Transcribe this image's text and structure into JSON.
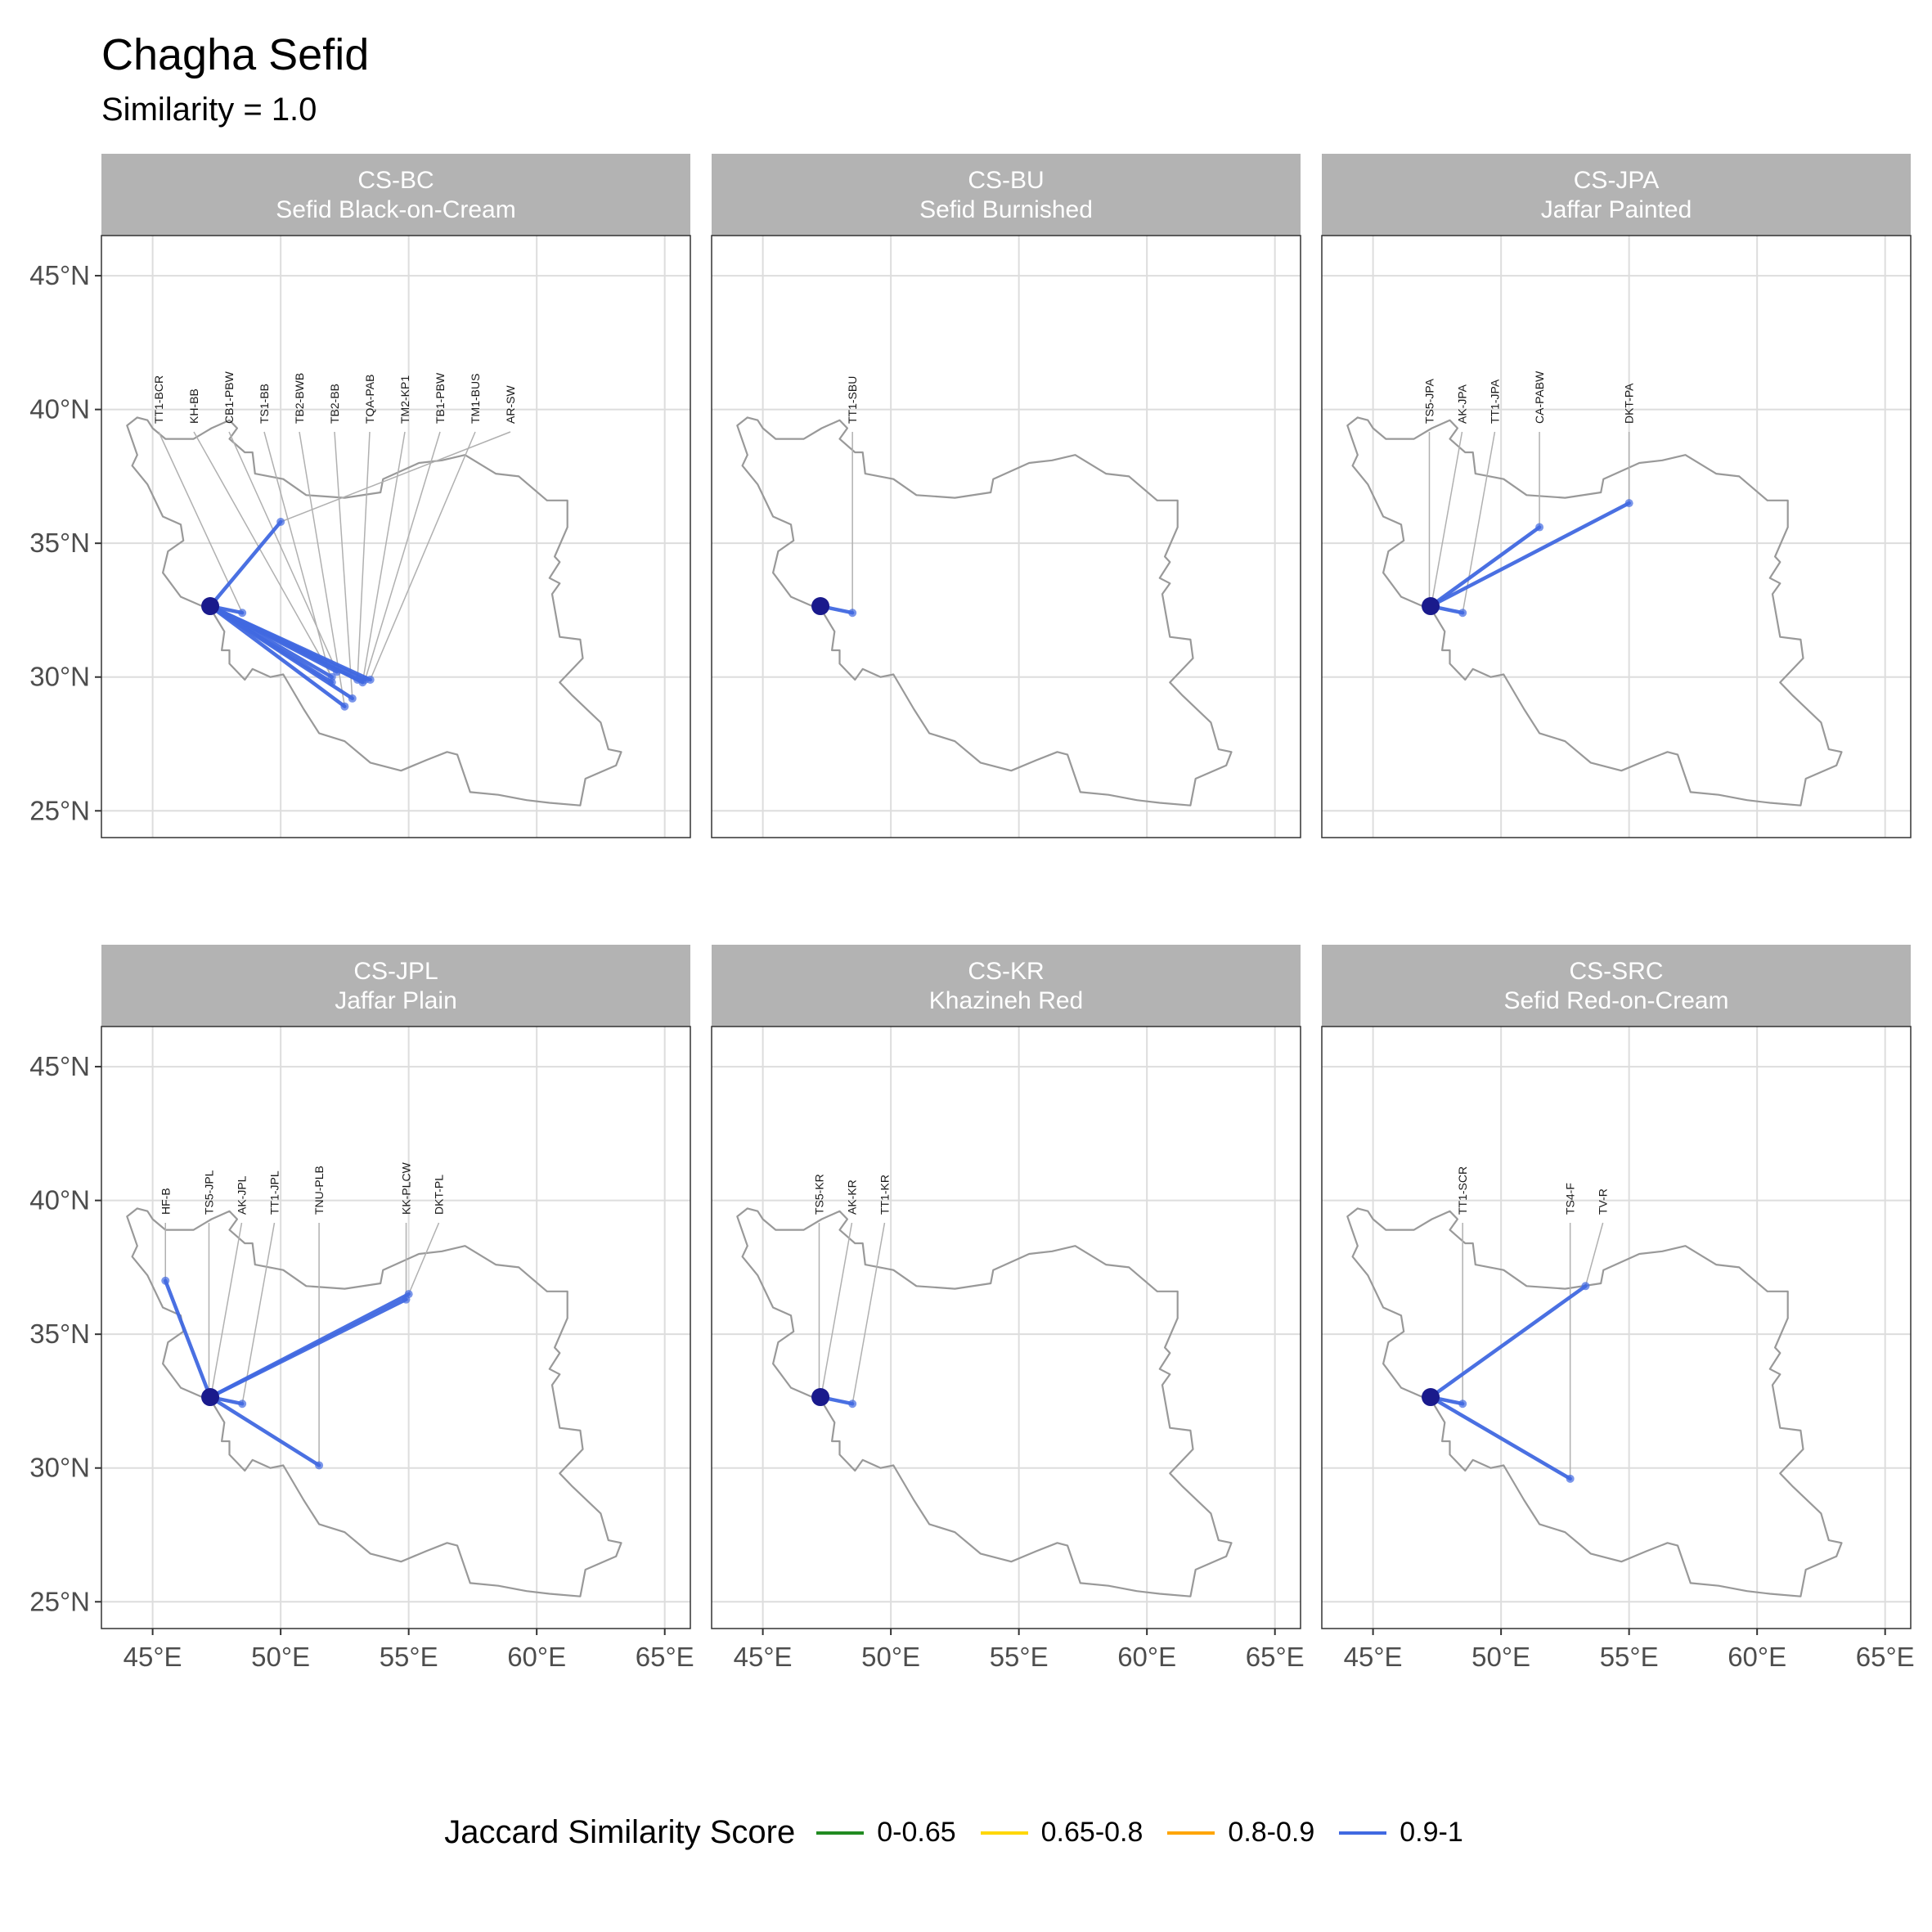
{
  "title": "Chagha Sefid",
  "subtitle": "Similarity = 1.0",
  "legend": {
    "title": "Jaccard Similarity Score",
    "items": [
      {
        "label": "0-0.65",
        "color": "#228B22"
      },
      {
        "label": "0.65-0.8",
        "color": "#FFD700"
      },
      {
        "label": "0.8-0.9",
        "color": "#FFA500"
      },
      {
        "label": "0.9-1",
        "color": "#4169E1"
      }
    ]
  },
  "axes": {
    "x_ticks": [
      {
        "value": 45,
        "label": "45°E"
      },
      {
        "value": 50,
        "label": "50°E"
      },
      {
        "value": 55,
        "label": "55°E"
      },
      {
        "value": 60,
        "label": "60°E"
      },
      {
        "value": 65,
        "label": "65°E"
      }
    ],
    "y_ticks": [
      {
        "value": 25,
        "label": "25°N"
      },
      {
        "value": 30,
        "label": "30°N"
      },
      {
        "value": 35,
        "label": "35°N"
      },
      {
        "value": 40,
        "label": "40°N"
      },
      {
        "value": 45,
        "label": "45°N"
      }
    ],
    "xlim": [
      43,
      66
    ],
    "ylim": [
      24,
      46.5
    ]
  },
  "origin": {
    "name": "Chagha Sefid",
    "lon": 47.25,
    "lat": 32.65
  },
  "colors": {
    "link": "#4169E1",
    "origin": "#1a1a8c",
    "border": "#999999",
    "grid": "#dddddd",
    "strip": "#b3b3b3",
    "leader": "#b0b0b0"
  },
  "chart_data": {
    "type": "map",
    "panels": [
      {
        "code": "CS-BC",
        "name": "Sefid Black-on-Cream",
        "sites": [
          {
            "label": "TT1-BCR",
            "lon": 48.5,
            "lat": 32.4
          },
          {
            "label": "KH-BB",
            "lon": 52.0,
            "lat": 30.0
          },
          {
            "label": "CB1-PBW",
            "lon": 52.2,
            "lat": 30.2
          },
          {
            "label": "TS1-BB",
            "lon": 52.0,
            "lat": 29.8
          },
          {
            "label": "TB2-BWB",
            "lon": 52.5,
            "lat": 28.9
          },
          {
            "label": "TB2-BB",
            "lon": 52.8,
            "lat": 29.2
          },
          {
            "label": "TQA-PAB",
            "lon": 53.0,
            "lat": 29.9
          },
          {
            "label": "TM2-KP1",
            "lon": 53.2,
            "lat": 29.8
          },
          {
            "label": "TB1-PBW",
            "lon": 53.3,
            "lat": 29.9
          },
          {
            "label": "TM1-BUS",
            "lon": 53.5,
            "lat": 29.9
          },
          {
            "label": "AR-SW",
            "lon": 50.0,
            "lat": 35.8
          }
        ]
      },
      {
        "code": "CS-BU",
        "name": "Sefid Burnished",
        "sites": [
          {
            "label": "TT1-SBU",
            "lon": 48.5,
            "lat": 32.4
          }
        ]
      },
      {
        "code": "CS-JPA",
        "name": "Jaffar Painted",
        "sites": [
          {
            "label": "TS5-JPA",
            "lon": 47.2,
            "lat": 32.7
          },
          {
            "label": "AK-JPA",
            "lon": 47.3,
            "lat": 32.8
          },
          {
            "label": "TT1-JPA",
            "lon": 48.5,
            "lat": 32.4
          },
          {
            "label": "CA-PABW",
            "lon": 51.5,
            "lat": 35.6
          },
          {
            "label": "DKT-PA",
            "lon": 55.0,
            "lat": 36.5
          }
        ]
      },
      {
        "code": "CS-JPL",
        "name": "Jaffar Plain",
        "sites": [
          {
            "label": "HF-B",
            "lon": 45.5,
            "lat": 37.0
          },
          {
            "label": "TS5-JPL",
            "lon": 47.2,
            "lat": 32.7
          },
          {
            "label": "AK-JPL",
            "lon": 47.3,
            "lat": 32.8
          },
          {
            "label": "TT1-JPL",
            "lon": 48.5,
            "lat": 32.4
          },
          {
            "label": "TNU-PLB",
            "lon": 51.5,
            "lat": 30.1
          },
          {
            "label": "KK-PLCW",
            "lon": 54.9,
            "lat": 36.3
          },
          {
            "label": "DKT-PL",
            "lon": 55.0,
            "lat": 36.5
          }
        ]
      },
      {
        "code": "CS-KR",
        "name": "Khazineh Red",
        "sites": [
          {
            "label": "TS5-KR",
            "lon": 47.2,
            "lat": 32.7
          },
          {
            "label": "AK-KR",
            "lon": 47.3,
            "lat": 32.8
          },
          {
            "label": "TT1-KR",
            "lon": 48.5,
            "lat": 32.4
          }
        ]
      },
      {
        "code": "CS-SRC",
        "name": "Sefid Red-on-Cream",
        "sites": [
          {
            "label": "TT1-SCR",
            "lon": 48.5,
            "lat": 32.4
          },
          {
            "label": "TS4-F",
            "lon": 52.7,
            "lat": 29.6
          },
          {
            "label": "TV-R",
            "lon": 53.3,
            "lat": 36.8
          }
        ]
      }
    ],
    "border_outline": [
      [
        44.0,
        39.4
      ],
      [
        44.4,
        39.7
      ],
      [
        44.8,
        39.6
      ],
      [
        45.0,
        39.3
      ],
      [
        45.5,
        38.9
      ],
      [
        46.2,
        38.9
      ],
      [
        46.6,
        38.9
      ],
      [
        47.3,
        39.3
      ],
      [
        48.0,
        39.6
      ],
      [
        48.3,
        39.3
      ],
      [
        48.0,
        38.9
      ],
      [
        48.6,
        38.4
      ],
      [
        48.9,
        38.4
      ],
      [
        49.0,
        37.6
      ],
      [
        50.1,
        37.4
      ],
      [
        51.0,
        36.8
      ],
      [
        52.5,
        36.7
      ],
      [
        53.9,
        36.9
      ],
      [
        54.0,
        37.4
      ],
      [
        55.4,
        38.0
      ],
      [
        56.3,
        38.1
      ],
      [
        57.2,
        38.3
      ],
      [
        58.4,
        37.6
      ],
      [
        59.3,
        37.5
      ],
      [
        60.4,
        36.6
      ],
      [
        61.2,
        36.6
      ],
      [
        61.2,
        35.6
      ],
      [
        60.7,
        34.5
      ],
      [
        60.9,
        34.3
      ],
      [
        60.5,
        33.7
      ],
      [
        60.9,
        33.5
      ],
      [
        60.6,
        33.1
      ],
      [
        60.9,
        31.5
      ],
      [
        61.7,
        31.4
      ],
      [
        61.8,
        30.7
      ],
      [
        60.9,
        29.8
      ],
      [
        61.4,
        29.3
      ],
      [
        62.5,
        28.3
      ],
      [
        62.8,
        27.3
      ],
      [
        63.3,
        27.2
      ],
      [
        63.1,
        26.7
      ],
      [
        61.9,
        26.2
      ],
      [
        61.7,
        25.2
      ],
      [
        60.5,
        25.3
      ],
      [
        59.6,
        25.4
      ],
      [
        58.5,
        25.6
      ],
      [
        57.4,
        25.7
      ],
      [
        56.9,
        27.1
      ],
      [
        56.5,
        27.2
      ],
      [
        55.7,
        26.9
      ],
      [
        54.7,
        26.5
      ],
      [
        53.5,
        26.8
      ],
      [
        52.5,
        27.6
      ],
      [
        51.5,
        27.9
      ],
      [
        50.9,
        28.8
      ],
      [
        50.1,
        30.1
      ],
      [
        49.6,
        30.0
      ],
      [
        48.9,
        30.3
      ],
      [
        48.6,
        29.9
      ],
      [
        48.0,
        30.5
      ],
      [
        48.0,
        31.0
      ],
      [
        47.7,
        31.0
      ],
      [
        47.8,
        31.7
      ],
      [
        47.3,
        32.5
      ],
      [
        46.1,
        33.0
      ],
      [
        45.4,
        33.9
      ],
      [
        45.6,
        34.7
      ],
      [
        46.2,
        35.1
      ],
      [
        46.1,
        35.7
      ],
      [
        45.4,
        36.0
      ],
      [
        44.8,
        37.2
      ],
      [
        44.2,
        37.9
      ],
      [
        44.4,
        38.3
      ],
      [
        44.0,
        39.4
      ]
    ]
  }
}
